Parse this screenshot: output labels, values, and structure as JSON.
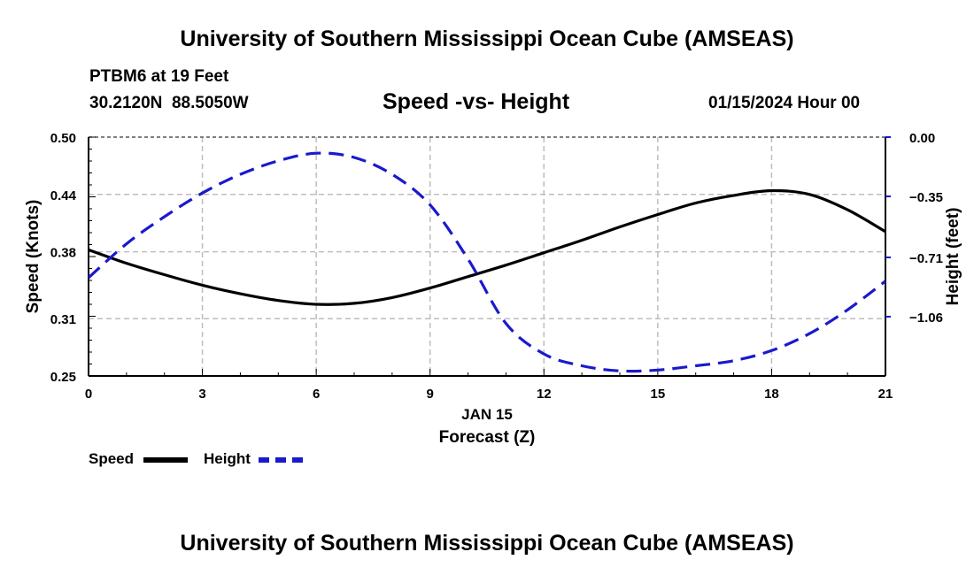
{
  "header": {
    "title": "University of Southern Mississippi Ocean Cube (AMSEAS)",
    "station": "PTBM6 at 19 Feet",
    "coords": "30.2120N  88.5050W",
    "subtitle": "Speed -vs- Height",
    "datetime": "01/15/2024 Hour 00"
  },
  "footer": {
    "title": "University of Southern Mississippi Ocean Cube (AMSEAS)"
  },
  "legend": [
    {
      "label": "Speed",
      "color": "#000000",
      "style": "solid"
    },
    {
      "label": "Height",
      "color": "#1a1acc",
      "style": "dashed"
    }
  ],
  "chart_data": {
    "type": "line",
    "title": "Speed -vs- Height",
    "xlabel": "Forecast (Z)",
    "xlabel_date": "JAN 15",
    "ylabel": "Speed (Knots)",
    "ylabel_right": "Height (feet)",
    "grid": true,
    "x_ticks": [
      0,
      3,
      6,
      9,
      12,
      15,
      18,
      21
    ],
    "x_tick_labels": [
      "0",
      "3",
      "6",
      "9",
      "12",
      "15",
      "18",
      "21"
    ],
    "xlim": [
      0,
      21
    ],
    "ylim": [
      0.25,
      0.5
    ],
    "y_ticks": [
      0.25,
      0.31,
      0.38,
      0.44,
      0.5
    ],
    "y_tick_labels": [
      "0.25",
      "0.31",
      "0.38",
      "0.44",
      "0.50"
    ],
    "ylim_right": [
      -1.41,
      0.0
    ],
    "y_ticks_right": [
      0.0,
      -0.35,
      -0.71,
      -1.06
    ],
    "y_tick_labels_right": [
      "0.00",
      "−0.35",
      "−0.71",
      "−1.06"
    ],
    "series": [
      {
        "name": "Speed",
        "axis": "left",
        "color": "#000000",
        "x": [
          0,
          1,
          2,
          3,
          4,
          5,
          6,
          7,
          8,
          9,
          10,
          11,
          12,
          13,
          14,
          15,
          16,
          17,
          18,
          19,
          20,
          21
        ],
        "values": [
          0.382,
          0.368,
          0.356,
          0.345,
          0.336,
          0.329,
          0.325,
          0.326,
          0.332,
          0.342,
          0.354,
          0.366,
          0.379,
          0.392,
          0.406,
          0.419,
          0.431,
          0.439,
          0.444,
          0.44,
          0.424,
          0.401
        ]
      },
      {
        "name": "Height",
        "axis": "right",
        "color": "#1a1acc",
        "x": [
          0,
          1,
          2,
          3,
          4,
          5,
          6,
          7,
          8,
          9,
          10,
          11,
          12,
          13,
          14,
          15,
          16,
          17,
          18,
          19,
          20,
          21
        ],
        "values": [
          -0.83,
          -0.63,
          -0.47,
          -0.33,
          -0.22,
          -0.14,
          -0.095,
          -0.12,
          -0.22,
          -0.4,
          -0.72,
          -1.1,
          -1.28,
          -1.35,
          -1.38,
          -1.375,
          -1.35,
          -1.32,
          -1.26,
          -1.16,
          -1.02,
          -0.85
        ]
      }
    ]
  }
}
